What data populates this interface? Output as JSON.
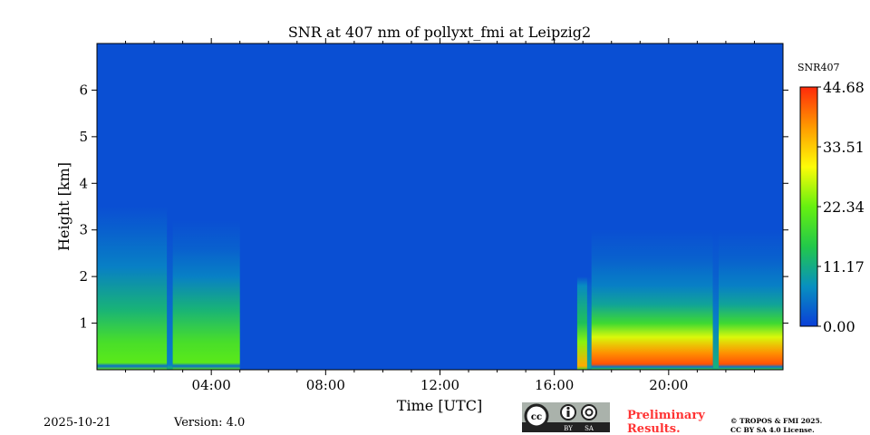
{
  "chart_data": {
    "type": "heatmap",
    "title": "SNR at 407 nm of pollyxt_fmi at Leipzig2",
    "xlabel": "Time [UTC]",
    "ylabel": "Height [km]",
    "xlim": [
      0,
      24
    ],
    "ylim": [
      0,
      7
    ],
    "xticks": [
      {
        "v": 4,
        "label": "04:00"
      },
      {
        "v": 8,
        "label": "08:00"
      },
      {
        "v": 12,
        "label": "12:00"
      },
      {
        "v": 16,
        "label": "16:00"
      },
      {
        "v": 20,
        "label": "20:00"
      }
    ],
    "yticks": [
      {
        "v": 1,
        "label": "1"
      },
      {
        "v": 2,
        "label": "2"
      },
      {
        "v": 3,
        "label": "3"
      },
      {
        "v": 4,
        "label": "4"
      },
      {
        "v": 5,
        "label": "5"
      },
      {
        "v": 6,
        "label": "6"
      }
    ],
    "background_snr": 1.5,
    "blocks": [
      {
        "t0": 0.0,
        "t1": 2.45,
        "profile": [
          [
            0,
            22
          ],
          [
            0.08,
            4
          ],
          [
            0.15,
            21
          ],
          [
            0.6,
            19
          ],
          [
            1.3,
            12
          ],
          [
            2.2,
            6
          ],
          [
            3.0,
            3
          ],
          [
            3.5,
            1.5
          ]
        ]
      },
      {
        "t0": 2.45,
        "t1": 2.65,
        "profile": [
          [
            0,
            14
          ],
          [
            0.1,
            6
          ],
          [
            2.0,
            3
          ],
          [
            3.0,
            1.5
          ]
        ]
      },
      {
        "t0": 2.65,
        "t1": 5.0,
        "profile": [
          [
            0,
            22
          ],
          [
            0.08,
            4
          ],
          [
            0.15,
            21
          ],
          [
            0.6,
            19
          ],
          [
            1.3,
            12
          ],
          [
            2.0,
            6
          ],
          [
            2.6,
            3
          ],
          [
            3.2,
            1.5
          ]
        ]
      },
      {
        "t0": 16.8,
        "t1": 17.15,
        "profile": [
          [
            0,
            18
          ],
          [
            0.08,
            36
          ],
          [
            0.6,
            24
          ],
          [
            1.0,
            14
          ],
          [
            1.8,
            7
          ],
          [
            2.0,
            1.5
          ]
        ]
      },
      {
        "t0": 17.15,
        "t1": 17.3,
        "profile": [
          [
            0,
            10
          ],
          [
            1.0,
            6
          ],
          [
            1.8,
            3
          ],
          [
            2.0,
            1.5
          ]
        ]
      },
      {
        "t0": 17.3,
        "t1": 21.55,
        "profile": [
          [
            0,
            18
          ],
          [
            0.06,
            5
          ],
          [
            0.12,
            42
          ],
          [
            0.35,
            38
          ],
          [
            0.7,
            28
          ],
          [
            1.0,
            18
          ],
          [
            1.4,
            10
          ],
          [
            1.8,
            6
          ],
          [
            2.4,
            3
          ],
          [
            3.0,
            1.5
          ]
        ]
      },
      {
        "t0": 21.55,
        "t1": 21.75,
        "profile": [
          [
            0,
            12
          ],
          [
            1.0,
            6
          ],
          [
            2.0,
            3
          ],
          [
            3.0,
            1.5
          ]
        ]
      },
      {
        "t0": 21.75,
        "t1": 24.0,
        "profile": [
          [
            0,
            18
          ],
          [
            0.06,
            5
          ],
          [
            0.12,
            42
          ],
          [
            0.35,
            38
          ],
          [
            0.7,
            28
          ],
          [
            1.0,
            18
          ],
          [
            1.4,
            10
          ],
          [
            1.8,
            6
          ],
          [
            2.4,
            3
          ],
          [
            3.0,
            1.5
          ]
        ]
      }
    ],
    "colorbar": {
      "label": "SNR407",
      "range": [
        0,
        44.68
      ],
      "ticks": [
        "0.00",
        "11.17",
        "22.34",
        "33.51",
        "44.68"
      ],
      "colors": [
        "#0a3fd8",
        "#0890c0",
        "#22c84a",
        "#66f010",
        "#fdfc08",
        "#ff9a00",
        "#ff2a0a"
      ]
    }
  },
  "footer": {
    "date": "2025-10-21",
    "version": "Version: 4.0",
    "preliminary_line1": "Preliminary",
    "preliminary_line2": "Results.",
    "copyright_line1": "© TROPOS & FMI 2025.",
    "copyright_line2": "CC BY SA 4.0 License.",
    "license_badge": "CC BY SA"
  }
}
